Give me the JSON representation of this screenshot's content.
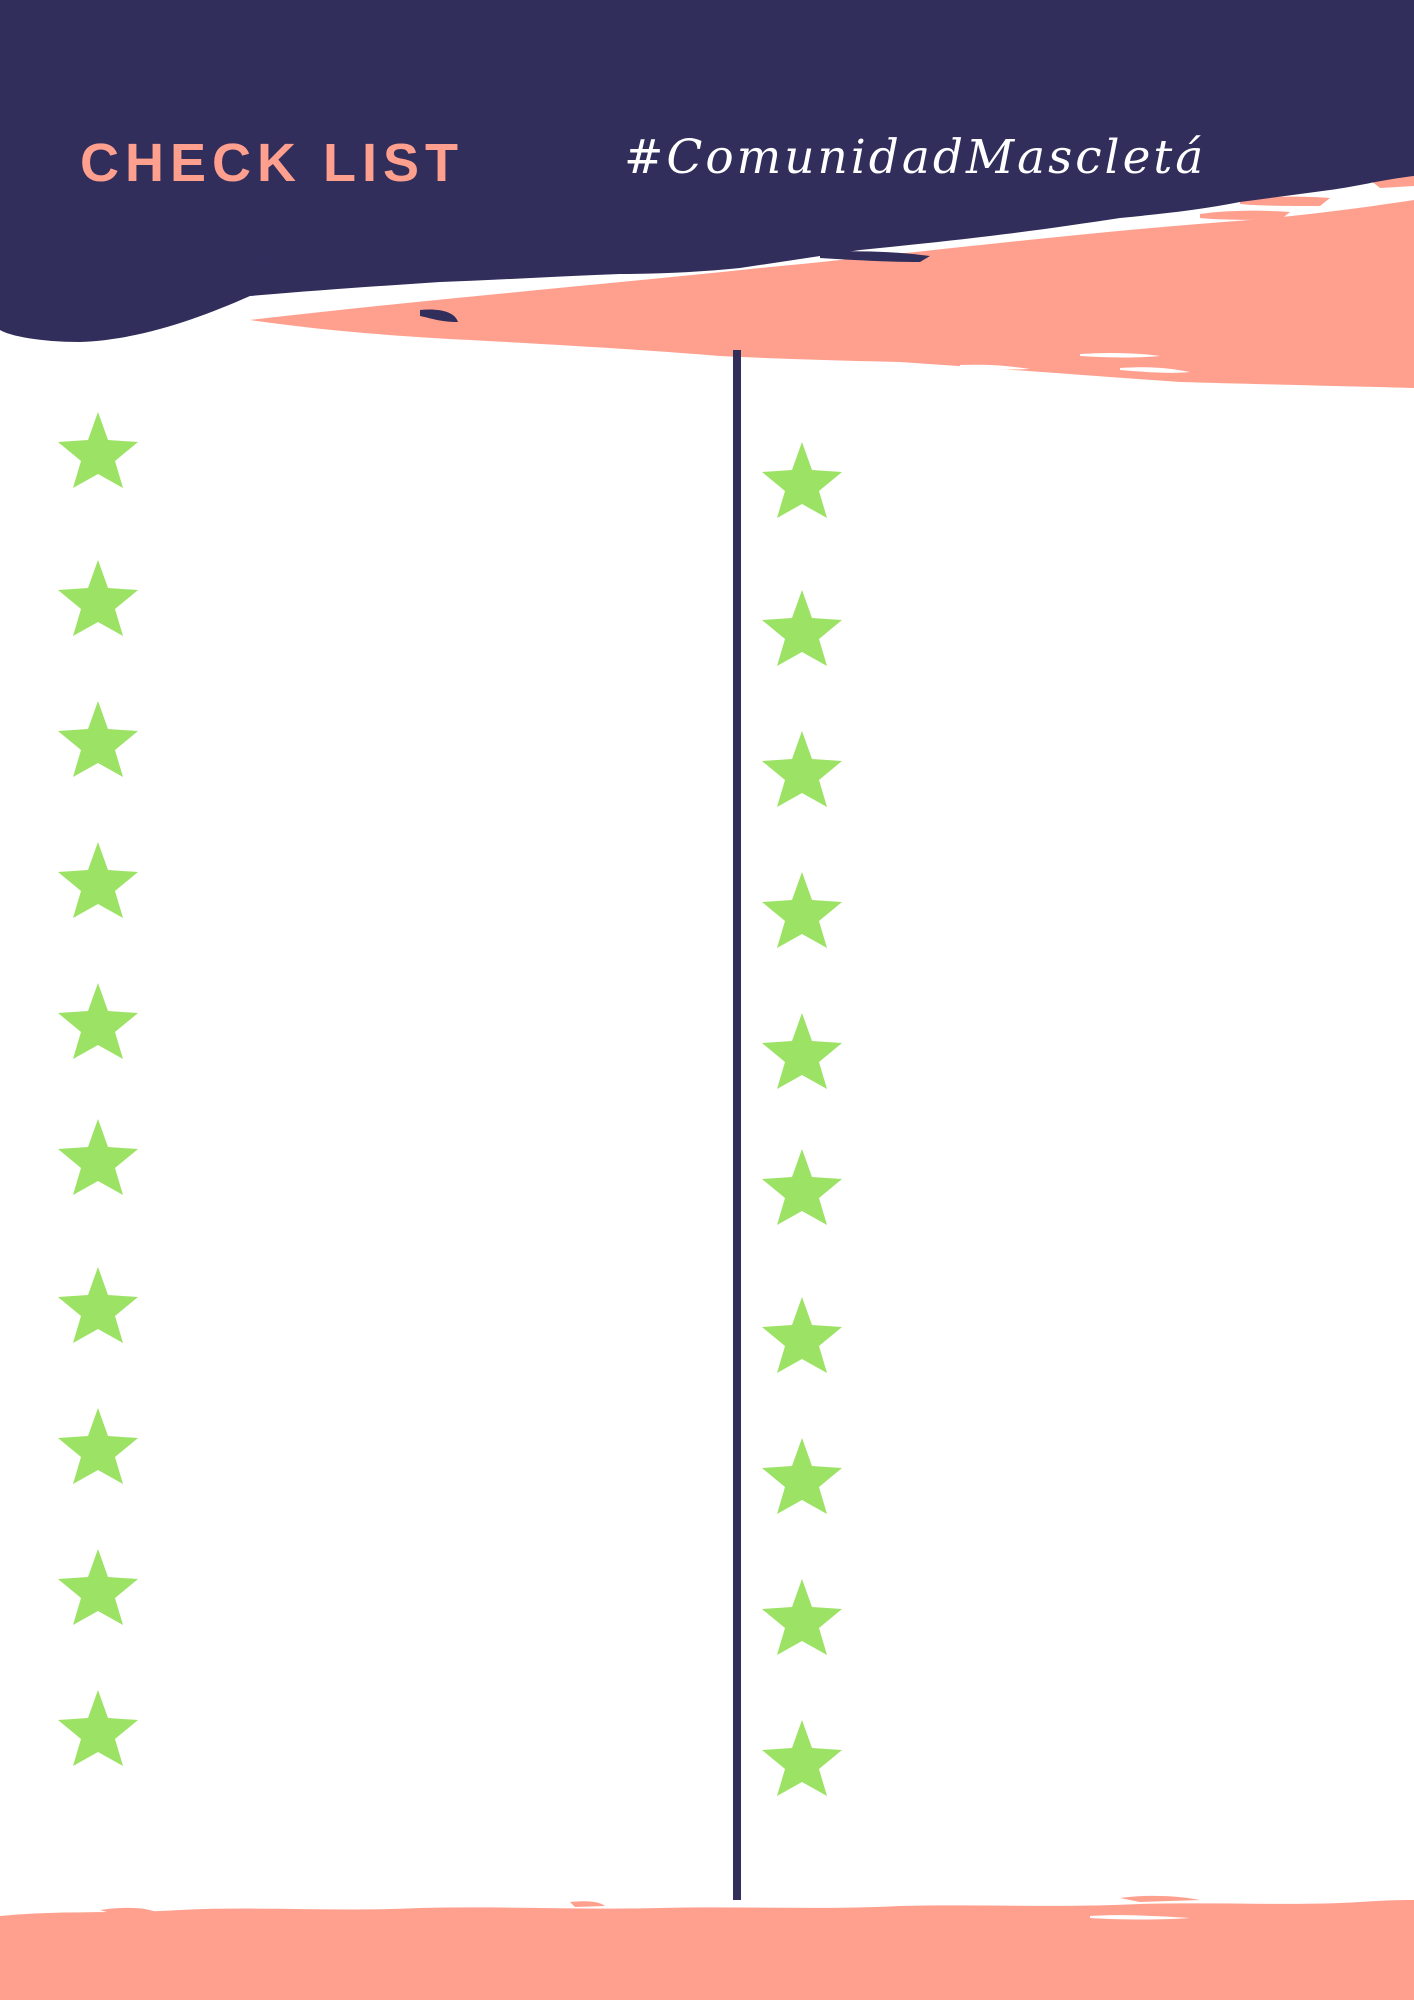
{
  "header": {
    "title": "CHECK LIST",
    "hashtag": "#ComunidadMascletá"
  },
  "checklist": {
    "left_column": [
      "star-icon",
      "star-icon",
      "star-icon",
      "star-icon",
      "star-icon",
      "star-icon",
      "star-icon",
      "star-icon",
      "star-icon",
      "star-icon"
    ],
    "right_column": [
      "star-icon",
      "star-icon",
      "star-icon",
      "star-icon",
      "star-icon",
      "star-icon",
      "star-icon",
      "star-icon",
      "star-icon",
      "star-icon"
    ]
  },
  "colors": {
    "navy": "#312e5c",
    "salmon": "#ffa08f",
    "star_green": "#9ce264",
    "white": "#ffffff"
  }
}
